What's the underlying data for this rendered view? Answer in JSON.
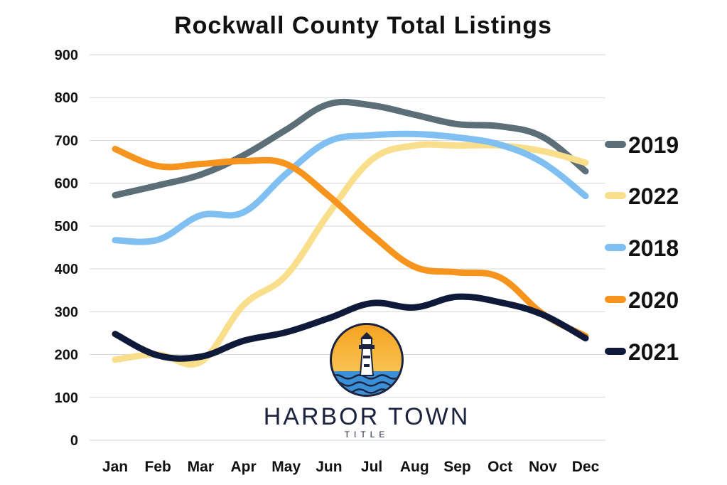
{
  "chart_data": {
    "type": "line",
    "title": "Rockwall County Total Listings",
    "xlabel": "",
    "ylabel": "",
    "categories": [
      "Jan",
      "Feb",
      "Mar",
      "Apr",
      "May",
      "Jun",
      "Jul",
      "Aug",
      "Sep",
      "Oct",
      "Nov",
      "Dec"
    ],
    "ylim": [
      0,
      900
    ],
    "yticks": [
      0,
      100,
      200,
      300,
      400,
      500,
      600,
      700,
      800,
      900
    ],
    "grid": true,
    "legend_position": "right",
    "smooth": true,
    "series": [
      {
        "name": "2019",
        "color": "#5c6e78",
        "values": [
          572,
          595,
          620,
          665,
          725,
          785,
          782,
          760,
          738,
          733,
          708,
          628
        ]
      },
      {
        "name": "2022",
        "color": "#f9df8c",
        "values": [
          188,
          200,
          183,
          315,
          385,
          530,
          655,
          688,
          688,
          688,
          675,
          648
        ]
      },
      {
        "name": "2018",
        "color": "#80bff2",
        "values": [
          467,
          468,
          525,
          532,
          622,
          698,
          712,
          715,
          707,
          690,
          648,
          570
        ]
      },
      {
        "name": "2020",
        "color": "#f7941d",
        "values": [
          680,
          640,
          645,
          652,
          645,
          570,
          480,
          405,
          392,
          380,
          295,
          243
        ]
      },
      {
        "name": "2021",
        "color": "#0f1a3a",
        "values": [
          248,
          198,
          195,
          232,
          252,
          285,
          320,
          310,
          335,
          322,
          293,
          238
        ]
      }
    ],
    "legend_order": [
      "2019",
      "2022",
      "2018",
      "2020",
      "2021"
    ]
  },
  "brand": {
    "name": "HARBOR TOWN",
    "subtitle": "TITLE"
  }
}
